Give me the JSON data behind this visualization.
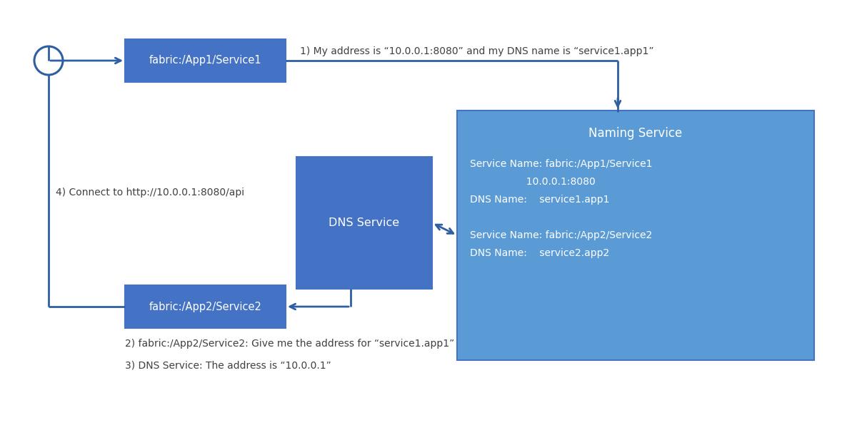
{
  "bg_color": "#ffffff",
  "box_color": "#4472c4",
  "naming_color": "#5b9bd5",
  "arrow_color": "#2e5fa3",
  "white": "#ffffff",
  "dark_text": "#404040",
  "figsize": [
    12.0,
    6.03
  ],
  "dpi": 100,
  "box1_label": "fabric:/App1/Service1",
  "box2_label": "DNS Service",
  "box3_label": "fabric:/App2/Service2",
  "naming_label": "Naming Service",
  "ann1": "1) My address is “10.0.0.1:8080” and my DNS name is “service1.app1”",
  "ann2": "2) fabric:/App2/Service2: Give me the address for “service1.app1”",
  "ann3": "3) DNS Service: The address is “10.0.0.1”",
  "ann4": "4) Connect to http://10.0.0.1:8080/api",
  "ns_line1": "Service Name: fabric:/App1/Service1",
  "ns_line2": "                  10.0.0.1:8080",
  "ns_line3": "DNS Name:    service1.app1",
  "ns_line4": "Service Name: fabric:/App2/Service2",
  "ns_line5": "DNS Name:    service2.app2"
}
